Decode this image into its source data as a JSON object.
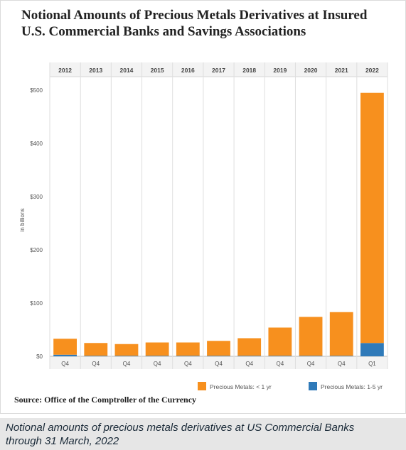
{
  "chart_data": {
    "type": "bar",
    "stacked": true,
    "title": "Notional Amounts of Precious Metals Derivatives at Insured U.S. Commercial Banks and Savings Associations",
    "ylabel": "in billions",
    "ylim": [
      0,
      500
    ],
    "yticks": [
      "$0",
      "$100",
      "$200",
      "$300",
      "$400",
      "$500"
    ],
    "ytick_values": [
      0,
      100,
      200,
      300,
      400,
      500
    ],
    "years": [
      "2012",
      "2013",
      "2014",
      "2015",
      "2016",
      "2017",
      "2018",
      "2019",
      "2020",
      "2021",
      "2022"
    ],
    "quarters": [
      "Q4",
      "Q4",
      "Q4",
      "Q4",
      "Q4",
      "Q4",
      "Q4",
      "Q4",
      "Q4",
      "Q4",
      "Q1"
    ],
    "series": [
      {
        "name": "Precious Metals: < 1 yr",
        "color": "#f7901e",
        "values": [
          30,
          24,
          22,
          25,
          25,
          28,
          33,
          53,
          73,
          82,
          470
        ]
      },
      {
        "name": "Precious Metals: 1-5 yr",
        "color": "#2f7ab9",
        "values": [
          3,
          1,
          1,
          1,
          1,
          1,
          1,
          1,
          1,
          1,
          25
        ]
      }
    ],
    "legend_position": "bottom",
    "grid": "vertical-separators"
  },
  "source": "Source: Office of the Comptroller of the Currency",
  "caption": "Notional amounts of precious metals derivatives at US Commercial Banks through 31 March, 2022"
}
